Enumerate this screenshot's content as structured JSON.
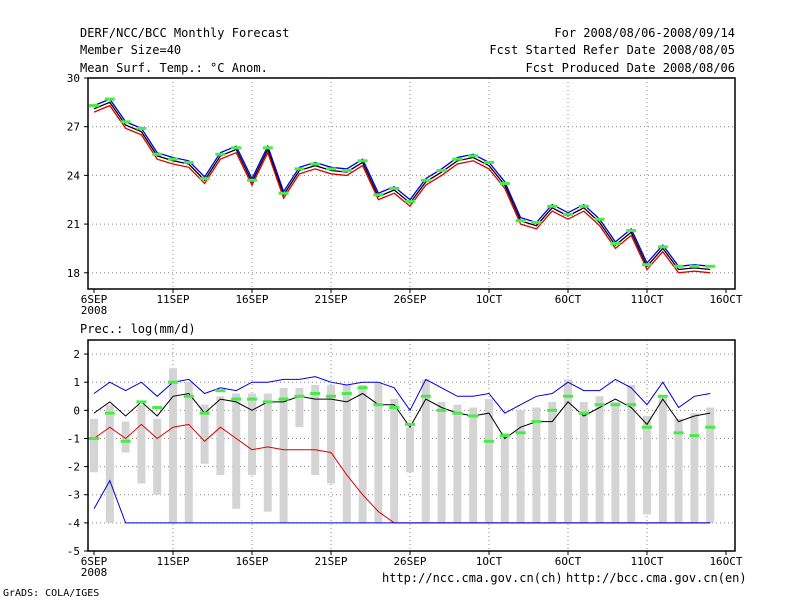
{
  "header": {
    "title": "DERF/NCC/BCC Monthly Forecast",
    "member_size": "Member Size=40",
    "variable": "Mean Surf. Temp.: °C Anom.",
    "period": "For 2008/08/06-2008/09/14",
    "started": "Fcst Started Refer Date 2008/08/05",
    "produced": "Fcst Produced Date 2008/08/06"
  },
  "footer": {
    "url_ch": "http://ncc.cma.gov.cn(ch)",
    "url_en": "http://bcc.cma.gov.cn(en)",
    "credit": "GrADS: COLA/IGES"
  },
  "colors": {
    "background": "#ffffff",
    "grid": "#888888",
    "green": "#44ee44",
    "blue": "#0000dd",
    "red": "#dd0000",
    "mean": "#000000",
    "bars": "#d4d4d4"
  },
  "chart_data": [
    {
      "type": "line",
      "title": "Mean Surf. Temp.: °C Anom.",
      "xlabel": "",
      "ylabel": "",
      "ylim": [
        17,
        30
      ],
      "yticks": [
        18,
        21,
        24,
        27,
        30
      ],
      "xticks": [
        {
          "day": 0,
          "label": "6SEP",
          "sublabel": "2008"
        },
        {
          "day": 5,
          "label": "11SEP"
        },
        {
          "day": 10,
          "label": "16SEP"
        },
        {
          "day": 15,
          "label": "21SEP"
        },
        {
          "day": 20,
          "label": "26SEP"
        },
        {
          "day": 25,
          "label": "1OCT"
        },
        {
          "day": 30,
          "label": "6OCT"
        },
        {
          "day": 35,
          "label": "11OCT"
        },
        {
          "day": 40,
          "label": "16OCT"
        }
      ],
      "x": [
        0,
        1,
        2,
        3,
        4,
        5,
        6,
        7,
        8,
        9,
        10,
        11,
        12,
        13,
        14,
        15,
        16,
        17,
        18,
        19,
        20,
        21,
        22,
        23,
        24,
        25,
        26,
        27,
        28,
        29,
        30,
        31,
        32,
        33,
        34,
        35,
        36,
        37,
        38,
        39
      ],
      "series": [
        {
          "name": "mean",
          "color": "black",
          "values": [
            28.1,
            28.5,
            27.1,
            26.7,
            25.2,
            24.9,
            24.7,
            23.7,
            25.2,
            25.6,
            23.6,
            25.6,
            22.8,
            24.3,
            24.6,
            24.3,
            24.2,
            24.8,
            22.7,
            23.1,
            22.3,
            23.6,
            24.2,
            24.9,
            25.1,
            24.6,
            23.4,
            21.2,
            20.9,
            22.0,
            21.5,
            22.0,
            21.1,
            19.7,
            20.5,
            18.4,
            19.5,
            18.2,
            18.3,
            18.2
          ]
        },
        {
          "name": "upper",
          "color": "blue",
          "values": [
            28.3,
            28.7,
            27.3,
            26.9,
            25.4,
            25.1,
            24.9,
            23.9,
            25.4,
            25.8,
            23.8,
            25.8,
            23.0,
            24.5,
            24.8,
            24.5,
            24.4,
            25.0,
            22.9,
            23.3,
            22.5,
            23.8,
            24.4,
            25.1,
            25.3,
            24.8,
            23.6,
            21.4,
            21.1,
            22.2,
            21.7,
            22.2,
            21.3,
            19.9,
            20.7,
            18.6,
            19.7,
            18.4,
            18.5,
            18.4
          ]
        },
        {
          "name": "lower",
          "color": "red",
          "values": [
            27.9,
            28.3,
            26.9,
            26.5,
            25.0,
            24.7,
            24.5,
            23.5,
            25.0,
            25.4,
            23.4,
            25.4,
            22.6,
            24.1,
            24.4,
            24.1,
            24.0,
            24.6,
            22.5,
            22.9,
            22.1,
            23.4,
            24.0,
            24.7,
            24.9,
            24.4,
            23.2,
            21.0,
            20.7,
            21.8,
            21.3,
            21.8,
            20.9,
            19.5,
            20.3,
            18.2,
            19.3,
            18.0,
            18.1,
            18.0
          ]
        },
        {
          "name": "climatology",
          "color": "green",
          "values": [
            28.3,
            28.7,
            27.3,
            26.9,
            25.3,
            25.0,
            24.8,
            23.8,
            25.3,
            25.7,
            23.7,
            25.7,
            22.9,
            24.4,
            24.7,
            24.4,
            24.3,
            24.9,
            22.8,
            23.2,
            22.4,
            23.7,
            24.3,
            25.0,
            25.2,
            24.8,
            23.5,
            21.2,
            21.1,
            22.1,
            21.6,
            22.1,
            21.3,
            19.8,
            20.6,
            18.5,
            19.6,
            18.4,
            18.4,
            18.4
          ]
        }
      ]
    },
    {
      "type": "line",
      "title": "Prec.: log(mm/d)",
      "xlabel": "",
      "ylabel": "",
      "ylim": [
        -5,
        2.5
      ],
      "yticks": [
        -5,
        -4,
        -3,
        -2,
        -1,
        0,
        1,
        2
      ],
      "xticks": [
        {
          "day": 0,
          "label": "6SEP",
          "sublabel": "2008"
        },
        {
          "day": 5,
          "label": "11SEP"
        },
        {
          "day": 10,
          "label": "16SEP"
        },
        {
          "day": 15,
          "label": "21SEP"
        },
        {
          "day": 20,
          "label": "26SEP"
        },
        {
          "day": 25,
          "label": "1OCT"
        },
        {
          "day": 30,
          "label": "6OCT"
        },
        {
          "day": 35,
          "label": "11OCT"
        },
        {
          "day": 40,
          "label": "16OCT"
        }
      ],
      "x": [
        0,
        1,
        2,
        3,
        4,
        5,
        6,
        7,
        8,
        9,
        10,
        11,
        12,
        13,
        14,
        15,
        16,
        17,
        18,
        19,
        20,
        21,
        22,
        23,
        24,
        25,
        26,
        27,
        28,
        29,
        30,
        31,
        32,
        33,
        34,
        35,
        36,
        37,
        38,
        39
      ],
      "series": [
        {
          "name": "upper",
          "color": "blue",
          "values": [
            0.6,
            1.0,
            0.7,
            1.0,
            0.5,
            1.0,
            1.1,
            0.6,
            0.8,
            0.7,
            1.0,
            1.0,
            1.1,
            1.1,
            1.2,
            1.0,
            0.9,
            1.0,
            1.0,
            0.8,
            0.0,
            1.1,
            0.8,
            0.5,
            0.5,
            0.6,
            -0.1,
            0.2,
            0.5,
            0.6,
            1.0,
            0.7,
            0.7,
            1.1,
            0.8,
            0.2,
            1.0,
            0.1,
            0.5,
            0.6
          ]
        },
        {
          "name": "mean",
          "color": "black",
          "values": [
            -0.1,
            0.3,
            -0.2,
            0.3,
            -0.2,
            0.5,
            0.6,
            -0.1,
            0.4,
            0.3,
            0.0,
            0.3,
            0.3,
            0.5,
            0.4,
            0.4,
            0.3,
            0.6,
            0.2,
            0.2,
            -0.6,
            0.4,
            0.1,
            -0.1,
            -0.2,
            -0.1,
            -1.0,
            -0.6,
            -0.4,
            -0.4,
            0.3,
            -0.2,
            0.1,
            0.4,
            0.1,
            -0.5,
            0.4,
            -0.4,
            -0.2,
            -0.1
          ]
        },
        {
          "name": "lower",
          "color": "red",
          "values": [
            -1.0,
            -0.6,
            -1.0,
            -0.5,
            -1.0,
            -0.6,
            -0.5,
            -1.1,
            -0.6,
            -1.0,
            -1.4,
            -1.3,
            -1.4,
            -1.4,
            -1.4,
            -1.5,
            -2.3,
            -3.0,
            -3.6,
            -4.0,
            -4.0,
            -4.0,
            -4.0,
            -4.0,
            -4.0,
            -4.0,
            -4.0,
            -4.0,
            -4.0,
            -4.0,
            -4.0,
            -4.0,
            -4.0,
            -4.0,
            -4.0,
            -4.0,
            -4.0,
            -4.0,
            -4.0,
            -4.0
          ]
        },
        {
          "name": "lower-bound",
          "color": "blue",
          "values": [
            -3.5,
            -2.5,
            -4.0,
            -4.0,
            -4.0,
            -4.0,
            -4.0,
            -4.0,
            -4.0,
            -4.0,
            -4.0,
            -4.0,
            -4.0,
            -4.0,
            -4.0,
            -4.0,
            -4.0,
            -4.0,
            -4.0,
            -4.0,
            -4.0,
            -4.0,
            -4.0,
            -4.0,
            -4.0,
            -4.0,
            -4.0,
            -4.0,
            -4.0,
            -4.0,
            -4.0,
            -4.0,
            -4.0,
            -4.0,
            -4.0,
            -4.0,
            -4.0,
            -4.0,
            -4.0,
            -4.0
          ]
        },
        {
          "name": "spread-high",
          "color": "gray",
          "values": [
            -0.3,
            0.2,
            -0.4,
            0.2,
            -0.3,
            1.5,
            1.0,
            0.2,
            0.5,
            0.6,
            0.6,
            0.6,
            0.8,
            0.8,
            0.9,
            0.9,
            0.9,
            0.9,
            1.0,
            0.4,
            -0.6,
            1.1,
            0.3,
            0.2,
            0.1,
            0.4,
            -0.8,
            0.0,
            0.1,
            0.3,
            1.1,
            0.3,
            0.5,
            0.3,
            0.9,
            -0.2,
            0.5,
            -0.3,
            -0.1,
            0.1
          ]
        },
        {
          "name": "spread-low",
          "color": "gray",
          "values": [
            -2.2,
            -4.0,
            -1.5,
            -2.6,
            -3.0,
            -4.0,
            -4.0,
            -1.9,
            -2.3,
            -3.5,
            -2.3,
            -3.6,
            -4.0,
            -0.6,
            -2.3,
            -2.6,
            -4.0,
            -4.0,
            -4.0,
            -4.0,
            -2.2,
            -4.0,
            -4.0,
            -4.0,
            -4.0,
            -4.0,
            -4.0,
            -4.0,
            -4.0,
            -4.0,
            -4.0,
            -4.0,
            -4.0,
            -4.0,
            -4.0,
            -3.7,
            -4.0,
            -4.0,
            -4.0,
            -4.0
          ]
        },
        {
          "name": "climatology",
          "color": "green",
          "values": [
            -1.0,
            -0.1,
            -1.1,
            0.3,
            0.1,
            1.0,
            0.5,
            -0.1,
            0.7,
            0.4,
            0.4,
            0.3,
            0.4,
            0.5,
            0.6,
            0.5,
            0.6,
            0.8,
            0.2,
            0.1,
            -0.5,
            0.5,
            0.0,
            -0.1,
            -0.2,
            -1.1,
            -0.9,
            -0.8,
            -0.4,
            0.0,
            0.5,
            -0.1,
            0.2,
            0.2,
            0.2,
            -0.6,
            0.5,
            -0.8,
            -0.9,
            -0.6
          ]
        }
      ]
    }
  ]
}
